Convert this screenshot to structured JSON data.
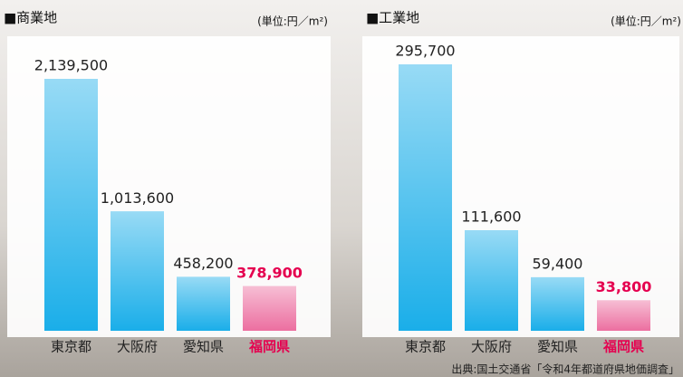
{
  "chart_data": [
    {
      "type": "bar",
      "title": "■商業地",
      "unit": "(単位:円／m²)",
      "categories": [
        "東京都",
        "大阪府",
        "愛知県",
        "福岡県"
      ],
      "values": [
        2139500,
        1013600,
        458200,
        378900
      ],
      "value_labels": [
        "2,139,500",
        "1,013,600",
        "458,200",
        "378,900"
      ],
      "colors": [
        "#1aaee9",
        "#1aaee9",
        "#1aaee9",
        "#ec6fa0"
      ],
      "label_colors": [
        "#222222",
        "#222222",
        "#222222",
        "#e5004f"
      ]
    },
    {
      "type": "bar",
      "title": "■工業地",
      "unit": "(単位:円／m²)",
      "categories": [
        "東京都",
        "大阪府",
        "愛知県",
        "福岡県"
      ],
      "values": [
        295700,
        111600,
        59400,
        33800
      ],
      "value_labels": [
        "295,700",
        "111,600",
        "59,400",
        "33,800"
      ],
      "colors": [
        "#1aaee9",
        "#1aaee9",
        "#1aaee9",
        "#ec6fa0"
      ],
      "label_colors": [
        "#222222",
        "#222222",
        "#222222",
        "#e5004f"
      ]
    }
  ],
  "source": "出典:国土交通省「令和4年都道府県地価調査」"
}
